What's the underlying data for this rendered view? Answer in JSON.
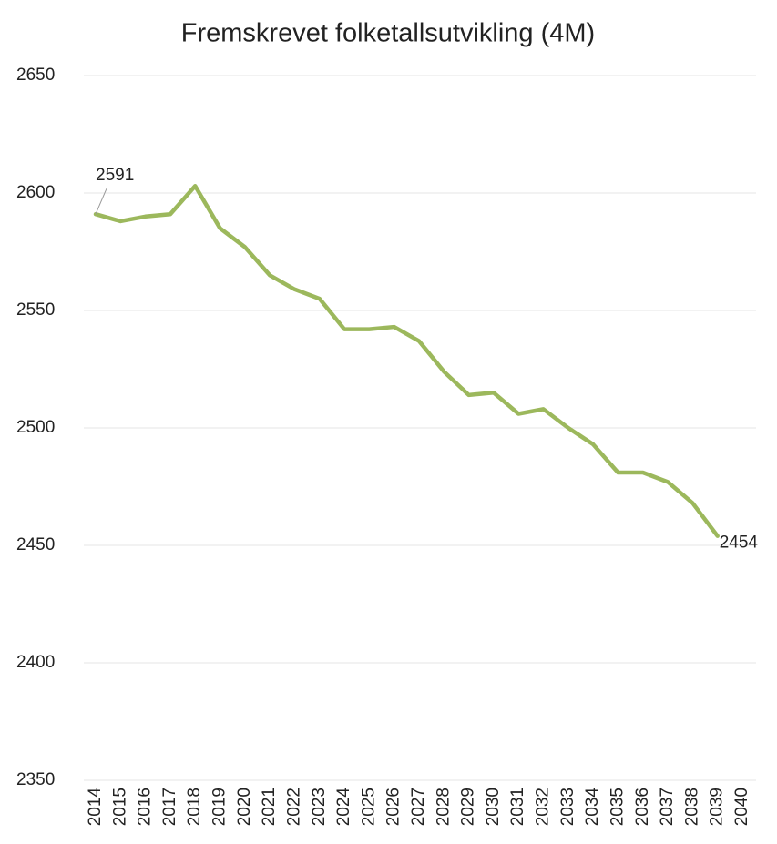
{
  "chart_data": {
    "type": "line",
    "title": "Fremskrevet folketallsutvikling (4M)",
    "categories": [
      "2014",
      "2015",
      "2016",
      "2017",
      "2018",
      "2019",
      "2020",
      "2021",
      "2022",
      "2023",
      "2024",
      "2025",
      "2026",
      "2027",
      "2028",
      "2029",
      "2030",
      "2031",
      "2032",
      "2033",
      "2034",
      "2035",
      "2036",
      "2037",
      "2038",
      "2039",
      "2040"
    ],
    "series": [
      {
        "name": null,
        "color": "#9cb85c",
        "values": [
          2591,
          2588,
          2590,
          2591,
          2603,
          2585,
          2577,
          2565,
          2559,
          2555,
          2542,
          2542,
          2543,
          2537,
          2524,
          2514,
          2515,
          2506,
          2508,
          2500,
          2493,
          2481,
          2481,
          2477,
          2468,
          2454,
          null
        ],
        "value_labels": [
          "2591",
          null,
          null,
          null,
          null,
          null,
          null,
          null,
          null,
          null,
          null,
          null,
          null,
          null,
          null,
          null,
          null,
          null,
          null,
          null,
          null,
          null,
          null,
          null,
          null,
          "2454",
          null
        ]
      }
    ],
    "ylim": [
      2350,
      2650
    ],
    "yticks": [
      2350,
      2400,
      2450,
      2500,
      2550,
      2600,
      2650
    ],
    "grid": true
  }
}
